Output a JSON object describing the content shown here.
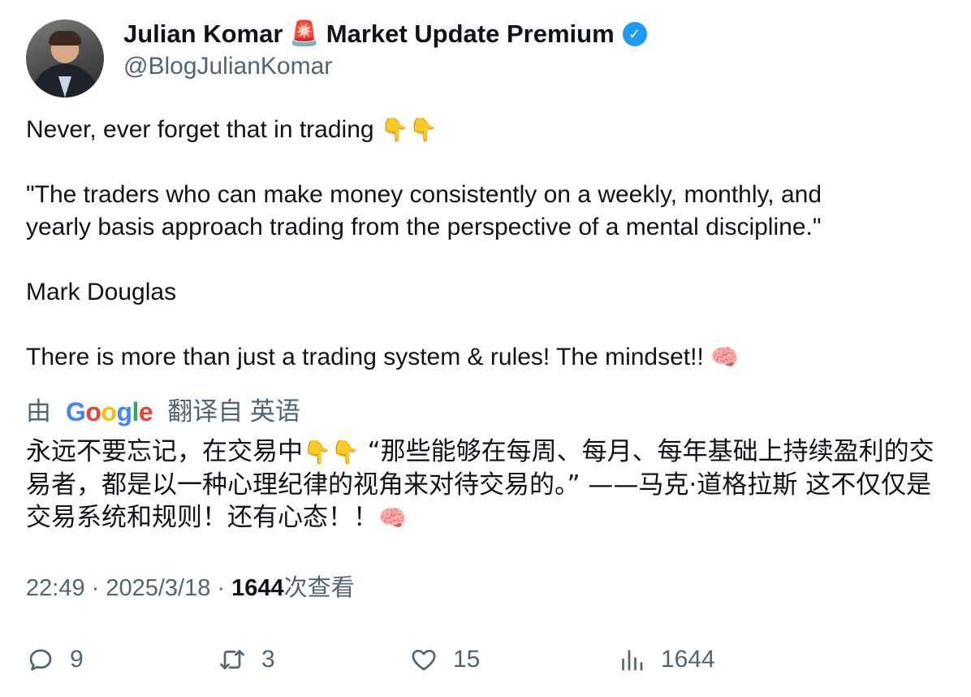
{
  "author": {
    "name": "Julian Komar",
    "siren_emoji": "🚨",
    "name_suffix": "Market Update Premium",
    "verified_mark": "✓",
    "handle": "@BlogJulianKomar"
  },
  "tweet": {
    "line1": "Never, ever forget that in trading",
    "hands": "👇👇",
    "quote_line1": "\"The traders who can make money consistently on a weekly, monthly, and",
    "quote_line2": "yearly basis approach trading from the perspective of a mental discipline.\"",
    "attribution": "Mark Douglas",
    "closing": "There is more than just a trading system & rules! The mindset!!",
    "brain": "🧠"
  },
  "translation": {
    "by": "由",
    "provider_letters": [
      "G",
      "o",
      "o",
      "g",
      "l",
      "e"
    ],
    "label": "翻译自 英语",
    "text_part1": "永远不要忘记，在交易中",
    "hands": "👇👇",
    "text_part2": " “那些能够在每周、每月、每年基础上持续盈利的交易者，都是以一种心理纪律的视角来对待交易的。” ——马克·道格拉斯 这不仅仅是交易系统和规则！还有心态！！",
    "brain": "🧠"
  },
  "meta": {
    "time": "22:49",
    "sep1": " · ",
    "date": "2025/3/18",
    "sep2": " · ",
    "views": "1644",
    "views_label": "次查看"
  },
  "actions": {
    "replies": "9",
    "retweets": "3",
    "likes": "15",
    "views": "1644"
  },
  "colors": {
    "text": "#0f1419",
    "secondary": "#536471",
    "verified": "#1d9bf0"
  }
}
